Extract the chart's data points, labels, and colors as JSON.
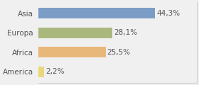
{
  "categories": [
    "Asia",
    "Europa",
    "Africa",
    "America"
  ],
  "values": [
    44.3,
    28.1,
    25.5,
    2.2
  ],
  "labels": [
    "44,3%",
    "28,1%",
    "25,5%",
    "2,2%"
  ],
  "bar_colors": [
    "#7b9dc5",
    "#aab87e",
    "#e8b87a",
    "#e8d87a"
  ],
  "background_color": "#f0f0f0",
  "xlim": [
    0,
    60
  ],
  "label_fontsize": 7.5,
  "tick_fontsize": 7.5,
  "bar_height": 0.55
}
